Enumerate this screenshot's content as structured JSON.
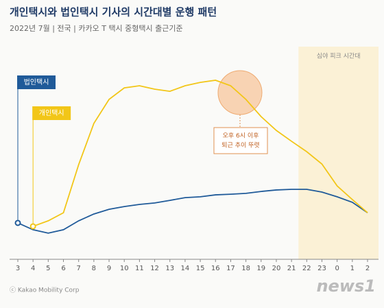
{
  "chart_data": {
    "type": "line",
    "title": "개인택시와 법인택시 기사의 시간대별 운행 패턴",
    "subtitle": "2022년 7월 | 전국 | 카카오 T 택시 중형택시 출근기준",
    "band_label": "심야 피크 시간대",
    "annotation": [
      "오후 6시 이후",
      "퇴근 추이 뚜렷"
    ],
    "footer": "ⓒ Kakao Mobility Corp",
    "watermark": "news1",
    "categories": [
      "3",
      "4",
      "5",
      "6",
      "7",
      "8",
      "9",
      "10",
      "11",
      "12",
      "13",
      "14",
      "15",
      "16",
      "17",
      "18",
      "19",
      "20",
      "21",
      "22",
      "23",
      "0",
      "1",
      "2"
    ],
    "series": [
      {
        "name": "법인택시",
        "color": "#1f5a99",
        "values": [
          17.1,
          13.9,
          12.3,
          13.9,
          18.1,
          21.3,
          23.5,
          24.8,
          25.8,
          26.5,
          27.7,
          29,
          29.4,
          30.3,
          30.6,
          31,
          31.9,
          32.6,
          32.9,
          32.9,
          31.6,
          29.4,
          26.8,
          21.9
        ]
      },
      {
        "name": "개인택시",
        "color": "#f2c618",
        "values": [
          null,
          15.5,
          18.1,
          21.9,
          44.5,
          63.9,
          75.2,
          80.6,
          81.6,
          80,
          79,
          81.6,
          83.2,
          84.2,
          81.6,
          75.2,
          67.1,
          60.6,
          55.5,
          50.6,
          44.8,
          34.5,
          28.1,
          21.9
        ]
      }
    ],
    "ylim": [
      0,
      100
    ]
  }
}
